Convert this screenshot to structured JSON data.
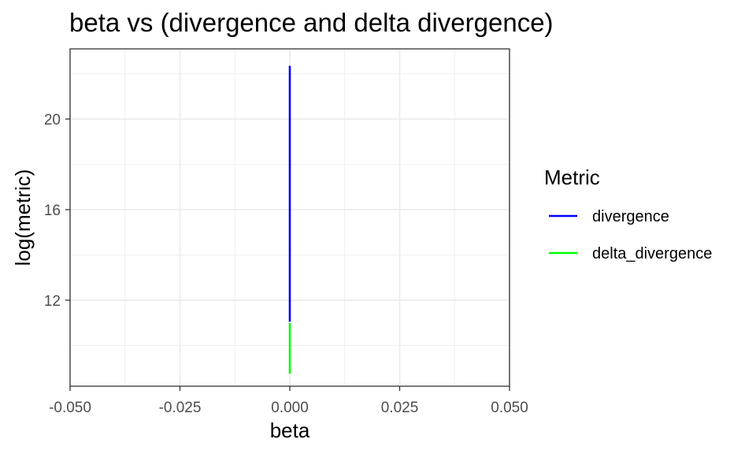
{
  "chart_data": {
    "type": "line",
    "title": "beta vs (divergence and delta divergence)",
    "xlabel": "beta",
    "ylabel": "log(metric)",
    "xlim": [
      -0.05,
      0.05
    ],
    "ylim": [
      8.2,
      23.1
    ],
    "x_ticks": [
      -0.05,
      -0.025,
      0.0,
      0.025,
      0.05
    ],
    "x_tick_labels": [
      "-0.050",
      "-0.025",
      "0.000",
      "0.025",
      "0.050"
    ],
    "y_ticks": [
      12,
      16,
      20
    ],
    "y_tick_labels": [
      "12",
      "16",
      "20"
    ],
    "grid": true,
    "legend_title": "Metric",
    "legend_position": "right",
    "series": [
      {
        "name": "divergence",
        "color": "#0000ff",
        "x": [
          0.0,
          0.0
        ],
        "y": [
          11.05,
          22.35
        ]
      },
      {
        "name": "delta_divergence",
        "color": "#00ff00",
        "x": [
          0.0,
          0.0
        ],
        "y": [
          8.75,
          11.0
        ]
      }
    ]
  }
}
